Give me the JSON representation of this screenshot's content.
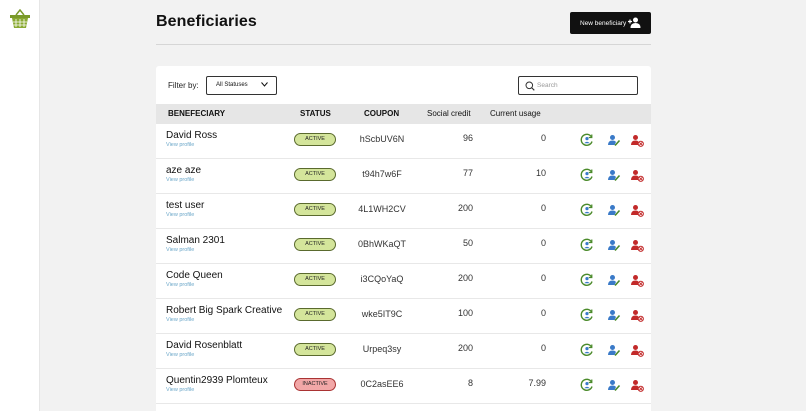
{
  "header": {
    "title": "Beneficiaries",
    "new_button_label": "New beneficiary"
  },
  "filter": {
    "label": "Filter by:",
    "selected": "All Statuses"
  },
  "search": {
    "placeholder": "Search"
  },
  "table": {
    "headers": [
      "BENEFECIARY",
      "STATUS",
      "COUPON",
      "Social credit",
      "Current usage"
    ],
    "view_profile_label": "View profile",
    "rows": [
      {
        "name": "David Ross",
        "status": "ACTIVE",
        "coupon": "hScbUV6N",
        "social_credit": "96",
        "current_usage": "0"
      },
      {
        "name": "aze aze",
        "status": "ACTIVE",
        "coupon": "t94h7w6F",
        "social_credit": "77",
        "current_usage": "10"
      },
      {
        "name": "test user",
        "status": "ACTIVE",
        "coupon": "4L1WH2CV",
        "social_credit": "200",
        "current_usage": "0"
      },
      {
        "name": "Salman 2301",
        "status": "ACTIVE",
        "coupon": "0BhWKaQT",
        "social_credit": "50",
        "current_usage": "0"
      },
      {
        "name": "Code Queen",
        "status": "ACTIVE",
        "coupon": "i3CQoYaQ",
        "social_credit": "200",
        "current_usage": "0"
      },
      {
        "name": "Robert Big Spark Creative",
        "status": "ACTIVE",
        "coupon": "wke5IT9C",
        "social_credit": "100",
        "current_usage": "0"
      },
      {
        "name": "David Rosenblatt",
        "status": "ACTIVE",
        "coupon": "Urpeq3sy",
        "social_credit": "200",
        "current_usage": "0"
      },
      {
        "name": "Quentin2939 Plomteux",
        "status": "INACTIVE",
        "coupon": "0C2asEE6",
        "social_credit": "8",
        "current_usage": "7.99"
      }
    ]
  },
  "colors": {
    "accent": "#111111",
    "active_badge": "#d4e59b",
    "inactive_badge": "#f2a7a7",
    "link": "#6aa6c8",
    "logo": "#7a9a2a",
    "action_green": "#4a8a2a",
    "action_blue": "#3a7ac8",
    "action_red": "#c22a2a"
  },
  "icons": [
    "basket-logo-icon",
    "add-user-icon",
    "chevron-down-icon",
    "search-icon",
    "coupon-refresh-icon",
    "edit-user-icon",
    "remove-user-icon"
  ]
}
